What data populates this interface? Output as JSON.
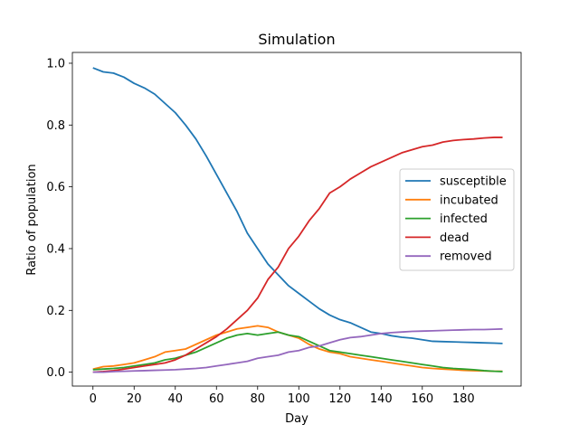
{
  "chart_data": {
    "type": "line",
    "title": "Simulation",
    "xlabel": "Day",
    "ylabel": "Ratio of population",
    "xlim": [
      -10,
      208
    ],
    "ylim": [
      -0.045,
      1.035
    ],
    "xticks": [
      0,
      20,
      40,
      60,
      80,
      100,
      120,
      140,
      160,
      180
    ],
    "xtick_labels": [
      "0",
      "20",
      "40",
      "60",
      "80",
      "100",
      "120",
      "140",
      "160",
      "180"
    ],
    "yticks": [
      0.0,
      0.2,
      0.4,
      0.6,
      0.8,
      1.0
    ],
    "ytick_labels": [
      "0.0",
      "0.2",
      "0.4",
      "0.6",
      "0.8",
      "1.0"
    ],
    "grid": false,
    "legend_position": "center-right",
    "x": [
      0,
      5,
      10,
      15,
      20,
      25,
      30,
      35,
      40,
      45,
      50,
      55,
      60,
      65,
      70,
      75,
      80,
      85,
      90,
      95,
      100,
      105,
      110,
      115,
      120,
      125,
      130,
      135,
      140,
      145,
      150,
      155,
      160,
      165,
      170,
      175,
      180,
      185,
      190,
      195,
      199
    ],
    "series": [
      {
        "name": "susceptible",
        "color": "#1f77b4",
        "values": [
          0.985,
          0.972,
          0.968,
          0.955,
          0.935,
          0.92,
          0.9,
          0.87,
          0.84,
          0.8,
          0.755,
          0.7,
          0.64,
          0.58,
          0.52,
          0.45,
          0.4,
          0.35,
          0.315,
          0.28,
          0.255,
          0.23,
          0.205,
          0.185,
          0.17,
          0.16,
          0.145,
          0.13,
          0.125,
          0.118,
          0.113,
          0.11,
          0.105,
          0.1,
          0.099,
          0.098,
          0.097,
          0.096,
          0.095,
          0.094,
          0.093
        ]
      },
      {
        "name": "incubated",
        "color": "#ff7f0e",
        "values": [
          0.01,
          0.018,
          0.02,
          0.025,
          0.03,
          0.04,
          0.05,
          0.065,
          0.07,
          0.075,
          0.09,
          0.105,
          0.12,
          0.13,
          0.14,
          0.145,
          0.15,
          0.145,
          0.13,
          0.12,
          0.11,
          0.09,
          0.075,
          0.065,
          0.06,
          0.05,
          0.045,
          0.04,
          0.035,
          0.03,
          0.025,
          0.02,
          0.015,
          0.012,
          0.01,
          0.008,
          0.006,
          0.005,
          0.004,
          0.003,
          0.003
        ]
      },
      {
        "name": "infected",
        "color": "#2ca02c",
        "values": [
          0.008,
          0.01,
          0.012,
          0.015,
          0.02,
          0.025,
          0.03,
          0.04,
          0.045,
          0.055,
          0.065,
          0.08,
          0.095,
          0.11,
          0.12,
          0.125,
          0.12,
          0.125,
          0.13,
          0.12,
          0.115,
          0.1,
          0.085,
          0.07,
          0.065,
          0.06,
          0.055,
          0.05,
          0.045,
          0.04,
          0.035,
          0.03,
          0.025,
          0.02,
          0.015,
          0.012,
          0.01,
          0.008,
          0.005,
          0.003,
          0.002
        ]
      },
      {
        "name": "dead",
        "color": "#d62728",
        "values": [
          0.0,
          0.002,
          0.005,
          0.01,
          0.015,
          0.02,
          0.025,
          0.03,
          0.04,
          0.055,
          0.075,
          0.095,
          0.115,
          0.14,
          0.17,
          0.2,
          0.24,
          0.3,
          0.34,
          0.4,
          0.44,
          0.49,
          0.53,
          0.58,
          0.6,
          0.625,
          0.645,
          0.665,
          0.68,
          0.695,
          0.71,
          0.72,
          0.73,
          0.735,
          0.745,
          0.75,
          0.753,
          0.755,
          0.758,
          0.76,
          0.76
        ]
      },
      {
        "name": "removed",
        "color": "#9467bd",
        "values": [
          0.0,
          0.0,
          0.002,
          0.003,
          0.004,
          0.005,
          0.006,
          0.007,
          0.008,
          0.01,
          0.012,
          0.015,
          0.02,
          0.025,
          0.03,
          0.035,
          0.045,
          0.05,
          0.055,
          0.065,
          0.07,
          0.08,
          0.085,
          0.095,
          0.105,
          0.112,
          0.115,
          0.12,
          0.125,
          0.128,
          0.13,
          0.132,
          0.133,
          0.134,
          0.135,
          0.136,
          0.137,
          0.138,
          0.138,
          0.139,
          0.14
        ]
      }
    ]
  }
}
